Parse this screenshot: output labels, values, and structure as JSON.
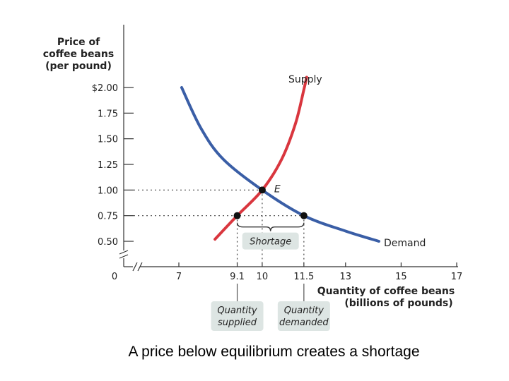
{
  "chart_data": {
    "type": "line",
    "ylabel_lines": [
      "Price of",
      "coffee beans",
      "(per pound)"
    ],
    "xlabel_lines": [
      "Quantity of coffee beans",
      "(billions of pounds)"
    ],
    "y_ticks": [
      {
        "value": 2.0,
        "label": "$2.00"
      },
      {
        "value": 1.75,
        "label": "1.75"
      },
      {
        "value": 1.5,
        "label": "1.50"
      },
      {
        "value": 1.25,
        "label": "1.25"
      },
      {
        "value": 1.0,
        "label": "1.00"
      },
      {
        "value": 0.75,
        "label": "0.75"
      },
      {
        "value": 0.5,
        "label": "0.50"
      }
    ],
    "x_ticks": [
      {
        "value": 7,
        "label": "7"
      },
      {
        "value": 9.1,
        "label": "9.1"
      },
      {
        "value": 10,
        "label": "10"
      },
      {
        "value": 11.5,
        "label": "11.5"
      },
      {
        "value": 13,
        "label": "13"
      },
      {
        "value": 15,
        "label": "15"
      },
      {
        "value": 17,
        "label": "17"
      }
    ],
    "origin_label": "0",
    "axis_breaks": true,
    "series": [
      {
        "name": "Supply",
        "color": "#d9363e",
        "x": [
          8.3,
          9.1,
          10.0,
          10.7,
          11.2,
          11.5,
          11.6
        ],
        "y": [
          0.52,
          0.75,
          1.0,
          1.3,
          1.65,
          1.98,
          2.1
        ]
      },
      {
        "name": "Demand",
        "color": "#3a5ea6",
        "x": [
          7.1,
          7.8,
          8.6,
          10.0,
          11.5,
          13.0,
          14.2
        ],
        "y": [
          2.0,
          1.6,
          1.3,
          1.0,
          0.75,
          0.6,
          0.5
        ]
      }
    ],
    "points": [
      {
        "name": "equilibrium",
        "label": "E",
        "x": 10.0,
        "y": 1.0
      },
      {
        "name": "quantity-supplied",
        "label": "",
        "x": 9.1,
        "y": 0.75
      },
      {
        "name": "quantity-demanded",
        "label": "",
        "x": 11.5,
        "y": 0.75
      }
    ],
    "shortage_label": "Shortage",
    "annotation_boxes": [
      {
        "name": "quantity-supplied",
        "x": 9.1,
        "lines": [
          "Quantity",
          "supplied"
        ]
      },
      {
        "name": "quantity-demanded",
        "x": 11.5,
        "lines": [
          "Quantity",
          "demanded"
        ]
      }
    ],
    "box_color": "#dde5e3",
    "grid": false
  },
  "caption": "A price below equilibrium creates a shortage"
}
